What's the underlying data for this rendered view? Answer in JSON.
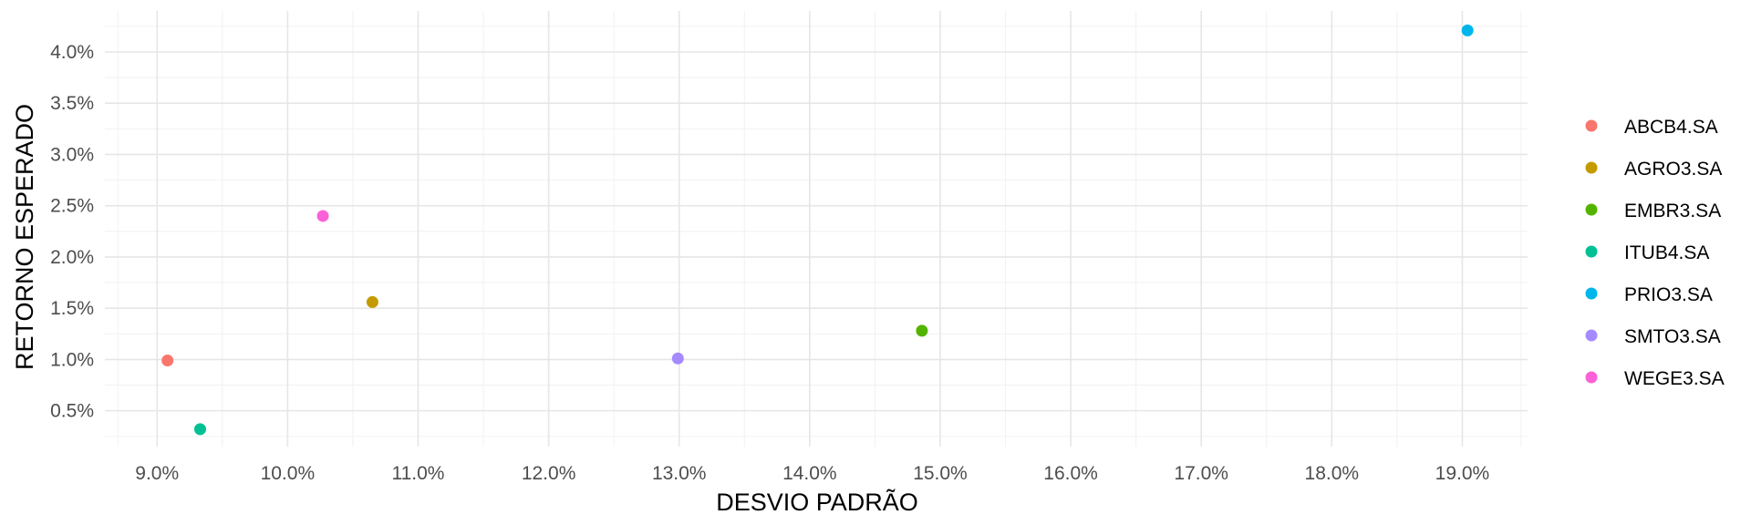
{
  "chart_data": {
    "type": "scatter",
    "xlabel": "DESVIO PADRÃO",
    "ylabel": "RETORNO ESPERADO",
    "xlim": [
      8.6,
      19.5
    ],
    "ylim": [
      0.15,
      4.4
    ],
    "x_ticks": [
      9,
      10,
      11,
      12,
      13,
      14,
      15,
      16,
      17,
      18,
      19
    ],
    "x_tick_labels": [
      "9.0%",
      "10.0%",
      "11.0%",
      "12.0%",
      "13.0%",
      "14.0%",
      "15.0%",
      "16.0%",
      "17.0%",
      "18.0%",
      "19.0%"
    ],
    "y_ticks": [
      0.5,
      1.0,
      1.5,
      2.0,
      2.5,
      3.0,
      3.5,
      4.0
    ],
    "y_tick_labels": [
      "0.5%",
      "1.0%",
      "1.5%",
      "2.0%",
      "2.5%",
      "3.0%",
      "3.5%",
      "4.0%"
    ],
    "grid": true,
    "legend_position": "right",
    "series": [
      {
        "name": "ABCB4.SA",
        "color": "#F8766D",
        "x": 9.08,
        "y": 0.99
      },
      {
        "name": "AGRO3.SA",
        "color": "#C49A00",
        "x": 10.65,
        "y": 1.56
      },
      {
        "name": "EMBR3.SA",
        "color": "#53B400",
        "x": 14.86,
        "y": 1.28
      },
      {
        "name": "ITUB4.SA",
        "color": "#00C094",
        "x": 9.33,
        "y": 0.32
      },
      {
        "name": "PRIO3.SA",
        "color": "#00B6EB",
        "x": 19.04,
        "y": 4.21
      },
      {
        "name": "SMTO3.SA",
        "color": "#A58AFF",
        "x": 12.99,
        "y": 1.01
      },
      {
        "name": "WEGE3.SA",
        "color": "#FB61D7",
        "x": 10.27,
        "y": 2.4
      }
    ]
  }
}
